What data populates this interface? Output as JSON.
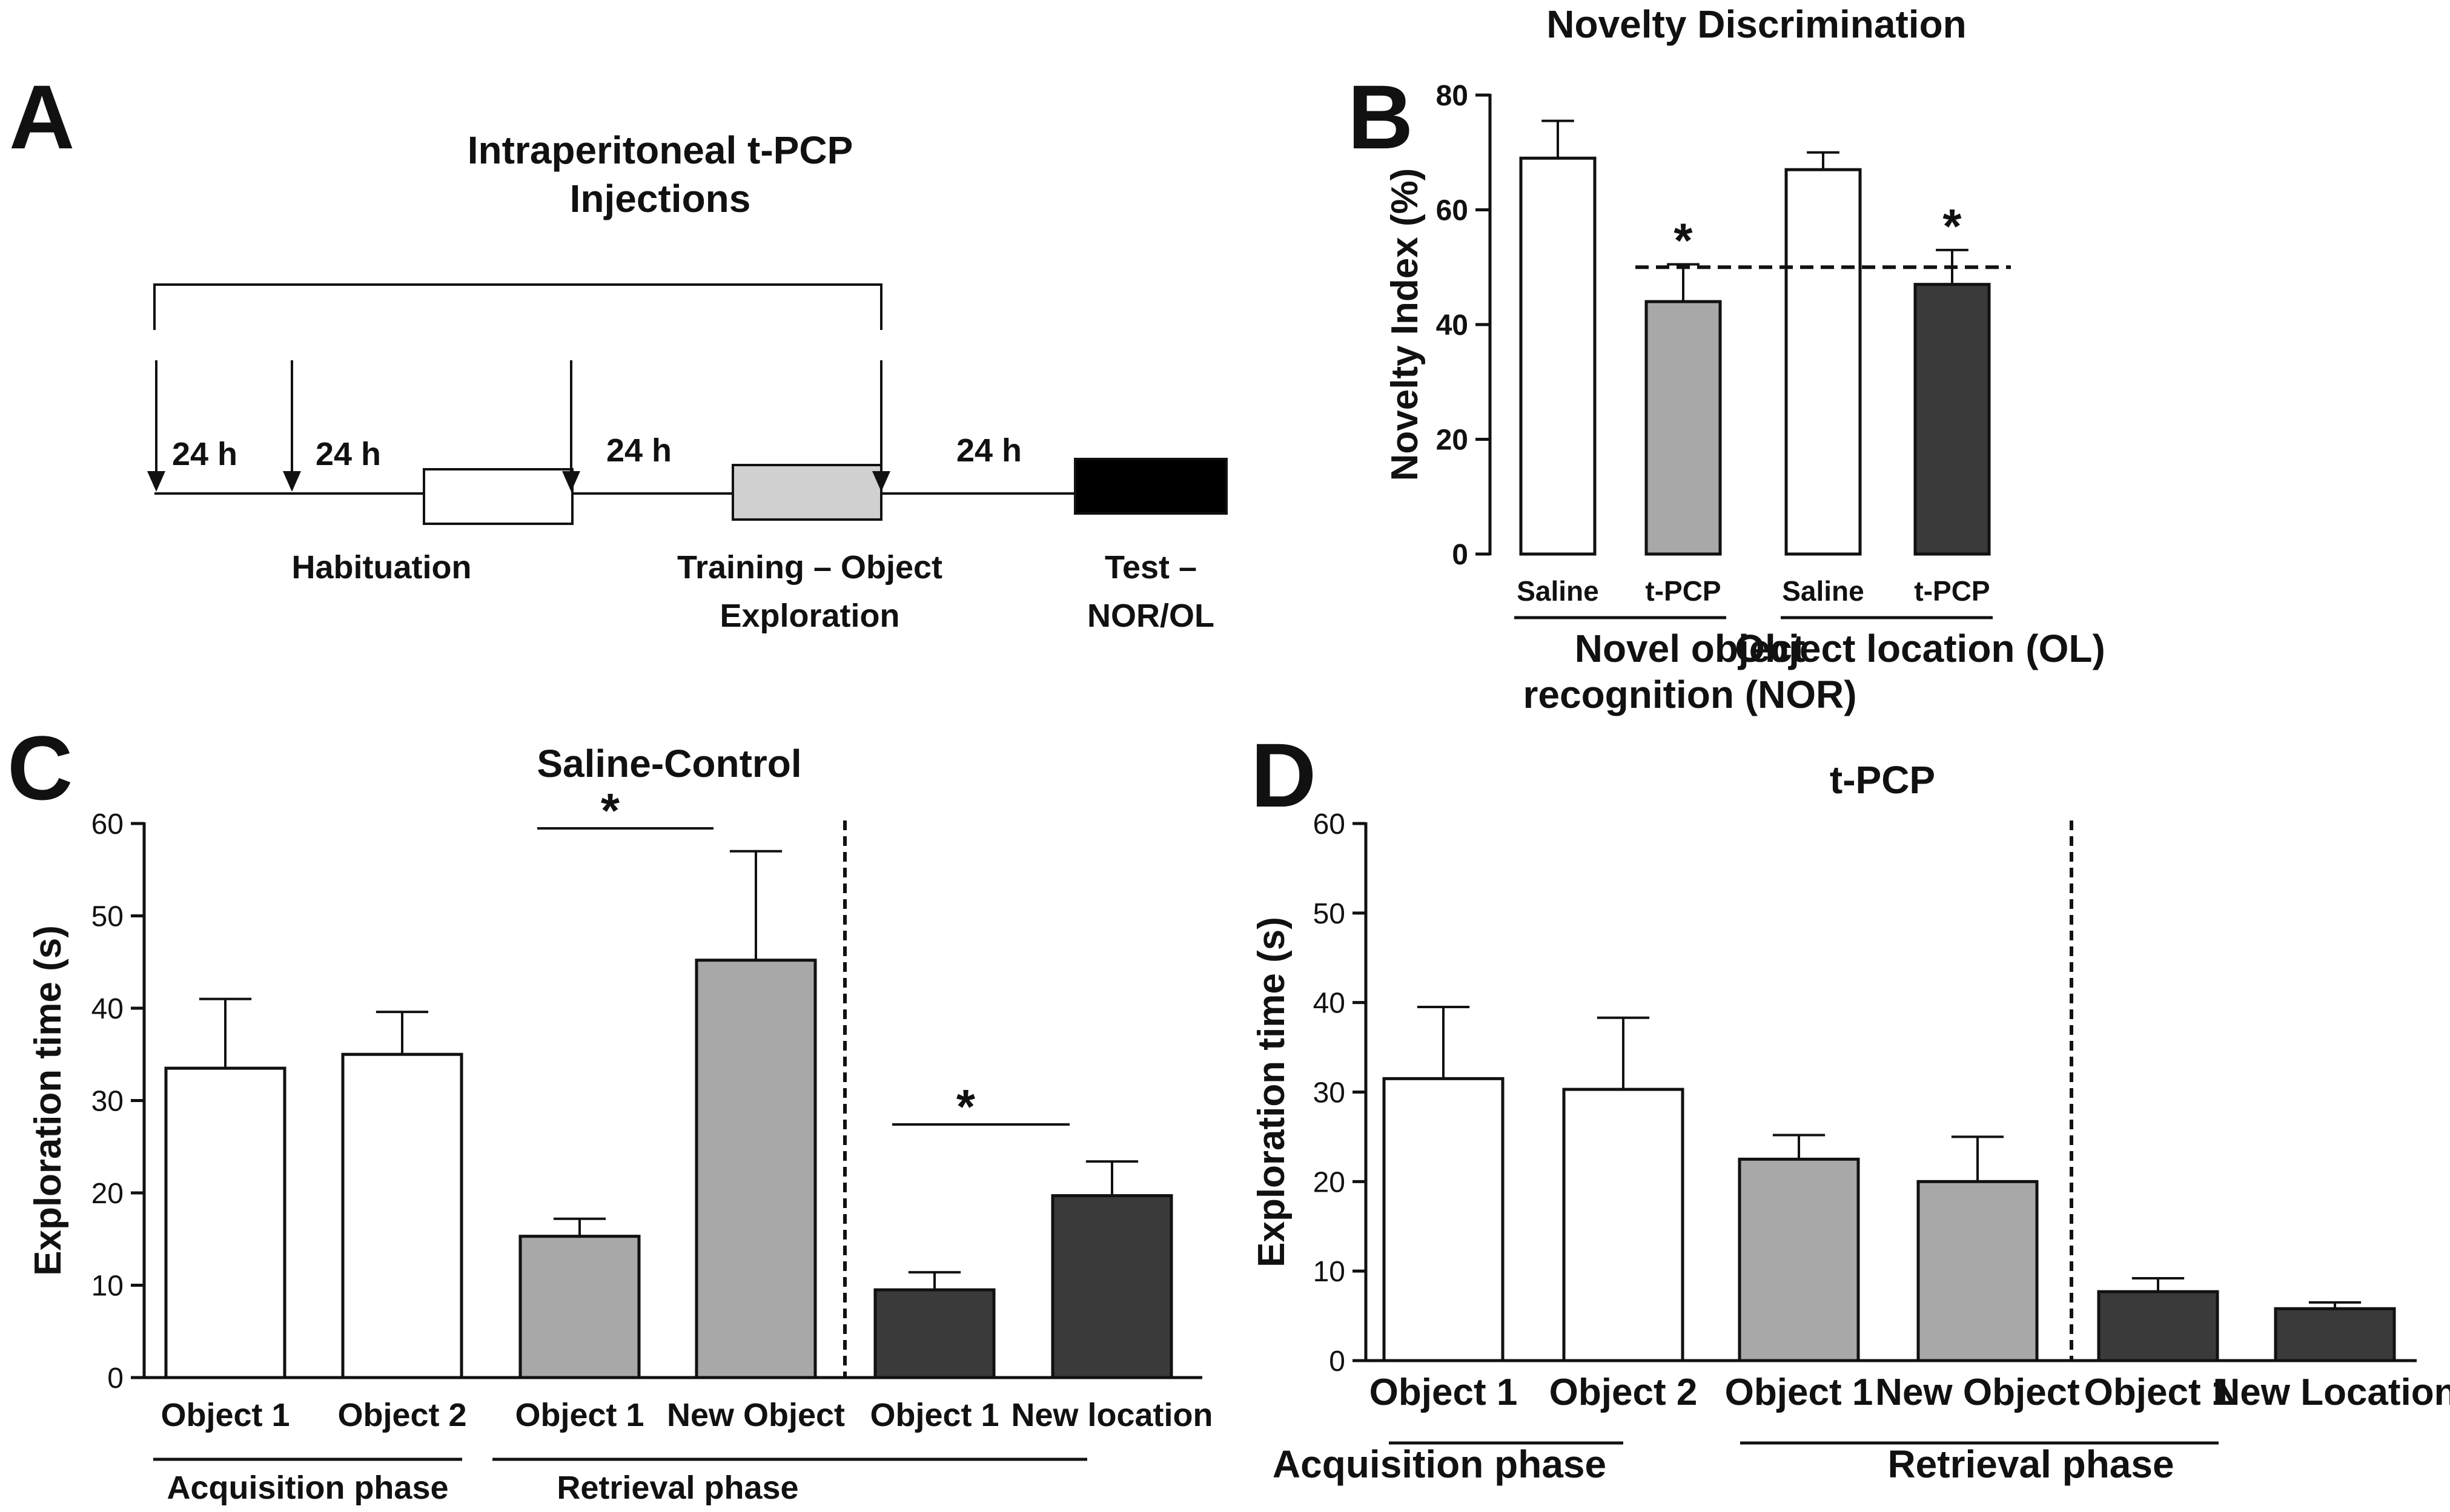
{
  "colors": {
    "saline": "#ffffff",
    "light_gray": "#a8a8a8",
    "dark_gray": "#3a3a3a",
    "axis": "#111111"
  },
  "panel_a": {
    "letter": "A",
    "title_lines": [
      "Intraperitoneal t-PCP",
      "Injections"
    ],
    "intervals": [
      "24 h",
      "24 h",
      "24 h",
      "24 h"
    ],
    "stages": [
      {
        "lines": [
          "Habituation"
        ],
        "fill": "#ffffff"
      },
      {
        "lines": [
          "Training – Object",
          "Exploration"
        ],
        "fill": "#d0d0d0"
      },
      {
        "lines": [
          "Test –",
          "NOR/OL"
        ],
        "fill": "#000000"
      }
    ]
  },
  "chart_data": [
    {
      "panel": "B",
      "type": "bar",
      "title": "Novelty Discrimination",
      "ylabel": "Novelty Index (%)",
      "ylim": [
        0,
        80
      ],
      "yticks": [
        0,
        20,
        40,
        60,
        80
      ],
      "categories": [
        "Saline",
        "t-PCP",
        "Saline",
        "t-PCP"
      ],
      "values": [
        69,
        44,
        67,
        47
      ],
      "errors": [
        6.5,
        6.5,
        3,
        6
      ],
      "fills": [
        "#ffffff",
        "#a8a8a8",
        "#ffffff",
        "#3a3a3a"
      ],
      "reference_line": 50,
      "significance": [
        "",
        "*",
        "",
        "*"
      ],
      "groups": [
        {
          "lines": [
            "Novel object",
            "recognition (NOR)"
          ]
        },
        {
          "lines": [
            "Object location (OL)"
          ]
        }
      ]
    },
    {
      "panel": "C",
      "type": "bar",
      "title": "Saline-Control",
      "ylabel": "Exploration time (s)",
      "ylim": [
        0,
        60
      ],
      "yticks": [
        0,
        10,
        20,
        30,
        40,
        50,
        60
      ],
      "categories": [
        "Object 1",
        "Object 2",
        "Object 1",
        "New Object",
        "Object 1",
        "New location"
      ],
      "values": [
        33.5,
        35,
        15.3,
        45.2,
        9.5,
        19.7
      ],
      "errors": [
        7.5,
        4.6,
        1.9,
        11.8,
        1.9,
        3.7
      ],
      "fills": [
        "#ffffff",
        "#ffffff",
        "#a8a8a8",
        "#a8a8a8",
        "#3a3a3a",
        "#3a3a3a"
      ],
      "significance": [
        {
          "from": 2,
          "to": 3,
          "label": "*"
        },
        {
          "from": 4,
          "to": 5,
          "label": "*"
        }
      ],
      "groups": [
        {
          "label": "Acquisition phase",
          "from": 0,
          "to": 1
        },
        {
          "label": "Retrieval phase",
          "from": 2,
          "to": 5
        }
      ],
      "divider_after_index": 3
    },
    {
      "panel": "D",
      "type": "bar",
      "title": "t-PCP",
      "ylabel": "Exploration time (s)",
      "ylim": [
        0,
        60
      ],
      "yticks": [
        0,
        10,
        20,
        30,
        40,
        50,
        60
      ],
      "categories": [
        "Object 1",
        "Object 2",
        "Object 1",
        "New Object",
        "Object 1",
        "New Location"
      ],
      "values": [
        31.5,
        30.3,
        22.5,
        20,
        7.7,
        5.8
      ],
      "errors": [
        8,
        8,
        2.7,
        5,
        1.5,
        0.7
      ],
      "fills": [
        "#ffffff",
        "#ffffff",
        "#a8a8a8",
        "#a8a8a8",
        "#3a3a3a",
        "#3a3a3a"
      ],
      "significance": [],
      "groups": [
        {
          "label": "Acquisition phase",
          "from": 0,
          "to": 1
        },
        {
          "label": "Retrieval phase",
          "from": 2,
          "to": 5
        }
      ],
      "divider_after_index": 3
    }
  ]
}
